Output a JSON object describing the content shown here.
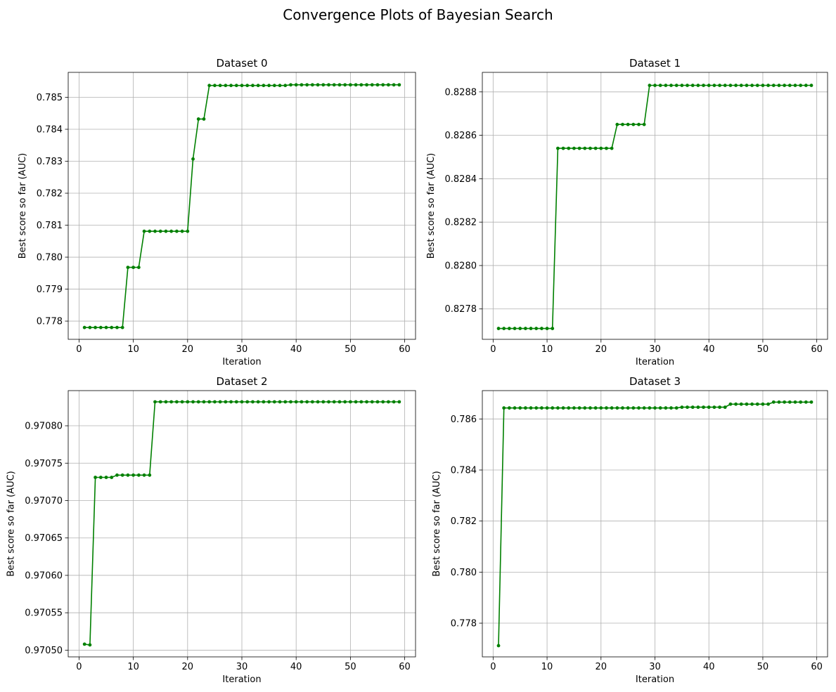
{
  "figure": {
    "title": "Convergence Plots of Bayesian Search"
  },
  "style": {
    "line_color": "#008000",
    "grid_color": "#b0b0b0"
  },
  "chart_data": [
    {
      "type": "line",
      "title": "Dataset 0",
      "xlabel": "Iteration",
      "ylabel": "Best score so far (AUC)",
      "grid": true,
      "xlim": [
        -2,
        62
      ],
      "ylim": [
        0.77743,
        0.78578
      ],
      "xticks": [
        0,
        10,
        20,
        30,
        40,
        50,
        60
      ],
      "xtick_labels": [
        "0",
        "10",
        "20",
        "30",
        "40",
        "50",
        "60"
      ],
      "yticks": [
        0.778,
        0.779,
        0.78,
        0.781,
        0.782,
        0.783,
        0.784,
        0.785
      ],
      "ytick_labels": [
        "0.778",
        "0.779",
        "0.780",
        "0.781",
        "0.782",
        "0.783",
        "0.784",
        "0.785"
      ],
      "series": [
        {
          "x": [
            1,
            2,
            3,
            4,
            5,
            6,
            7,
            8,
            9,
            10,
            11,
            12,
            13,
            14,
            15,
            16,
            17,
            18,
            19,
            20,
            21,
            22,
            23,
            24,
            25,
            26,
            27,
            28,
            29,
            30,
            31,
            32,
            33,
            34,
            35,
            36,
            37,
            38,
            39,
            40,
            41,
            42,
            43,
            44,
            45,
            46,
            47,
            48,
            49,
            50,
            51,
            52,
            53,
            54,
            55,
            56,
            57,
            58,
            59
          ],
          "y": [
            0.7778,
            0.7778,
            0.7778,
            0.7778,
            0.7778,
            0.7778,
            0.7778,
            0.7778,
            0.77968,
            0.77968,
            0.77968,
            0.78081,
            0.78081,
            0.78081,
            0.78081,
            0.78081,
            0.78081,
            0.78081,
            0.78081,
            0.78081,
            0.78307,
            0.78432,
            0.78432,
            0.78537,
            0.78537,
            0.78537,
            0.78537,
            0.78537,
            0.78537,
            0.78537,
            0.78537,
            0.78537,
            0.78537,
            0.78537,
            0.78537,
            0.78537,
            0.78537,
            0.78537,
            0.78539,
            0.78539,
            0.78539,
            0.78539,
            0.78539,
            0.78539,
            0.78539,
            0.78539,
            0.78539,
            0.78539,
            0.78539,
            0.78539,
            0.78539,
            0.78539,
            0.78539,
            0.78539,
            0.78539,
            0.78539,
            0.78539,
            0.78539,
            0.78539
          ]
        }
      ]
    },
    {
      "type": "line",
      "title": "Dataset 1",
      "xlabel": "Iteration",
      "ylabel": "Best score so far (AUC)",
      "grid": true,
      "xlim": [
        -2,
        62
      ],
      "ylim": [
        0.82766,
        0.82889
      ],
      "xticks": [
        0,
        10,
        20,
        30,
        40,
        50,
        60
      ],
      "xtick_labels": [
        "0",
        "10",
        "20",
        "30",
        "40",
        "50",
        "60"
      ],
      "yticks": [
        0.8278,
        0.828,
        0.8282,
        0.8284,
        0.8286,
        0.8288
      ],
      "ytick_labels": [
        "0.8278",
        "0.8280",
        "0.8282",
        "0.8284",
        "0.8286",
        "0.8288"
      ],
      "series": [
        {
          "x": [
            1,
            2,
            3,
            4,
            5,
            6,
            7,
            8,
            9,
            10,
            11,
            12,
            13,
            14,
            15,
            16,
            17,
            18,
            19,
            20,
            21,
            22,
            23,
            24,
            25,
            26,
            27,
            28,
            29,
            30,
            31,
            32,
            33,
            34,
            35,
            36,
            37,
            38,
            39,
            40,
            41,
            42,
            43,
            44,
            45,
            46,
            47,
            48,
            49,
            50,
            51,
            52,
            53,
            54,
            55,
            56,
            57,
            58,
            59
          ],
          "y": [
            0.82771,
            0.82771,
            0.82771,
            0.82771,
            0.82771,
            0.82771,
            0.82771,
            0.82771,
            0.82771,
            0.82771,
            0.82771,
            0.82854,
            0.82854,
            0.82854,
            0.82854,
            0.82854,
            0.82854,
            0.82854,
            0.82854,
            0.82854,
            0.82854,
            0.82854,
            0.82865,
            0.82865,
            0.82865,
            0.82865,
            0.82865,
            0.82865,
            0.82883,
            0.82883,
            0.82883,
            0.82883,
            0.82883,
            0.82883,
            0.82883,
            0.82883,
            0.82883,
            0.82883,
            0.82883,
            0.82883,
            0.82883,
            0.82883,
            0.82883,
            0.82883,
            0.82883,
            0.82883,
            0.82883,
            0.82883,
            0.82883,
            0.82883,
            0.82883,
            0.82883,
            0.82883,
            0.82883,
            0.82883,
            0.82883,
            0.82883,
            0.82883,
            0.82883
          ]
        }
      ]
    },
    {
      "type": "line",
      "title": "Dataset 2",
      "xlabel": "Iteration",
      "ylabel": "Best score so far (AUC)",
      "grid": true,
      "xlim": [
        -2,
        62
      ],
      "ylim": [
        0.970491,
        0.970847
      ],
      "xticks": [
        0,
        10,
        20,
        30,
        40,
        50,
        60
      ],
      "xtick_labels": [
        "0",
        "10",
        "20",
        "30",
        "40",
        "50",
        "60"
      ],
      "yticks": [
        0.9705,
        0.97055,
        0.9706,
        0.97065,
        0.9707,
        0.97075,
        0.9708
      ],
      "ytick_labels": [
        "0.97050",
        "0.97055",
        "0.97060",
        "0.97065",
        "0.97070",
        "0.97075",
        "0.97080"
      ],
      "series": [
        {
          "x": [
            1,
            2,
            3,
            4,
            5,
            6,
            7,
            8,
            9,
            10,
            11,
            12,
            13,
            14,
            15,
            16,
            17,
            18,
            19,
            20,
            21,
            22,
            23,
            24,
            25,
            26,
            27,
            28,
            29,
            30,
            31,
            32,
            33,
            34,
            35,
            36,
            37,
            38,
            39,
            40,
            41,
            42,
            43,
            44,
            45,
            46,
            47,
            48,
            49,
            50,
            51,
            52,
            53,
            54,
            55,
            56,
            57,
            58,
            59
          ],
          "y": [
            0.970508,
            0.970507,
            0.970731,
            0.970731,
            0.970731,
            0.970731,
            0.970734,
            0.970734,
            0.970734,
            0.970734,
            0.970734,
            0.970734,
            0.970734,
            0.970832,
            0.970832,
            0.970832,
            0.970832,
            0.970832,
            0.970832,
            0.970832,
            0.970832,
            0.970832,
            0.970832,
            0.970832,
            0.970832,
            0.970832,
            0.970832,
            0.970832,
            0.970832,
            0.970832,
            0.970832,
            0.970832,
            0.970832,
            0.970832,
            0.970832,
            0.970832,
            0.970832,
            0.970832,
            0.970832,
            0.970832,
            0.970832,
            0.970832,
            0.970832,
            0.970832,
            0.970832,
            0.970832,
            0.970832,
            0.970832,
            0.970832,
            0.970832,
            0.970832,
            0.970832,
            0.970832,
            0.970832,
            0.970832,
            0.970832,
            0.970832,
            0.970832,
            0.970832
          ]
        }
      ]
    },
    {
      "type": "line",
      "title": "Dataset 3",
      "xlabel": "Iteration",
      "ylabel": "Best score so far (AUC)",
      "grid": true,
      "xlim": [
        -2,
        62
      ],
      "ylim": [
        0.77668,
        0.78711
      ],
      "xticks": [
        0,
        10,
        20,
        30,
        40,
        50,
        60
      ],
      "xtick_labels": [
        "0",
        "10",
        "20",
        "30",
        "40",
        "50",
        "60"
      ],
      "yticks": [
        0.778,
        0.78,
        0.782,
        0.784,
        0.786
      ],
      "ytick_labels": [
        "0.778",
        "0.780",
        "0.782",
        "0.784",
        "0.786"
      ],
      "series": [
        {
          "x": [
            1,
            2,
            3,
            4,
            5,
            6,
            7,
            8,
            9,
            10,
            11,
            12,
            13,
            14,
            15,
            16,
            17,
            18,
            19,
            20,
            21,
            22,
            23,
            24,
            25,
            26,
            27,
            28,
            29,
            30,
            31,
            32,
            33,
            34,
            35,
            36,
            37,
            38,
            39,
            40,
            41,
            42,
            43,
            44,
            45,
            46,
            47,
            48,
            49,
            50,
            51,
            52,
            53,
            54,
            55,
            56,
            57,
            58,
            59
          ],
          "y": [
            0.77712,
            0.78643,
            0.78643,
            0.78643,
            0.78643,
            0.78643,
            0.78643,
            0.78643,
            0.78643,
            0.78643,
            0.78643,
            0.78643,
            0.78643,
            0.78643,
            0.78643,
            0.78643,
            0.78643,
            0.78643,
            0.78643,
            0.78643,
            0.78643,
            0.78643,
            0.78643,
            0.78643,
            0.78643,
            0.78643,
            0.78643,
            0.78643,
            0.78643,
            0.78643,
            0.78643,
            0.78643,
            0.78643,
            0.78643,
            0.78646,
            0.78646,
            0.78646,
            0.78646,
            0.78646,
            0.78646,
            0.78646,
            0.78646,
            0.78646,
            0.78658,
            0.78658,
            0.78658,
            0.78658,
            0.78658,
            0.78658,
            0.78658,
            0.78658,
            0.78666,
            0.78666,
            0.78666,
            0.78666,
            0.78666,
            0.78666,
            0.78666,
            0.78666
          ]
        }
      ]
    }
  ]
}
